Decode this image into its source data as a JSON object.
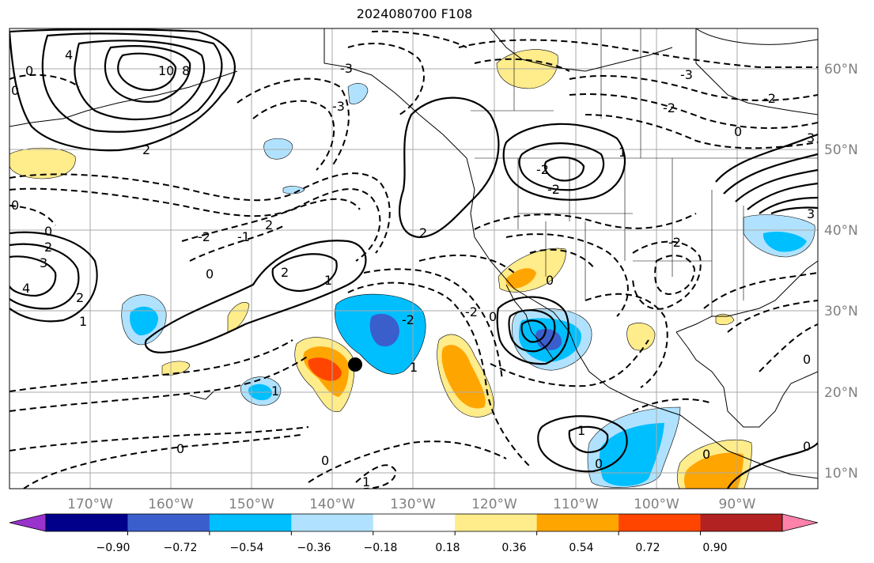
{
  "title": "2024080700 F108",
  "map": {
    "lon_labels": [
      "170°W",
      "160°W",
      "150°W",
      "140°W",
      "130°W",
      "120°W",
      "110°W",
      "100°W",
      "90°W"
    ],
    "lat_labels": [
      "60°N",
      "50°N",
      "40°N",
      "30°N",
      "20°N",
      "10°N"
    ],
    "contour_labels": [
      "2",
      "0",
      "-2",
      "-1",
      "1",
      "3",
      "4",
      "8",
      "10",
      "0",
      "-3",
      "-2",
      "-1",
      "2",
      "1",
      "0"
    ],
    "marker": "storm-position"
  },
  "colorbar": {
    "colors": [
      "#9a32cd",
      "#00008b",
      "#3a5fcd",
      "#00bfff",
      "#b0e2ff",
      "#ffffff",
      "#ffec8b",
      "#ffa500",
      "#ff4500",
      "#b22222",
      "#ff82ab"
    ],
    "tick_labels": [
      "−0.90",
      "−0.72",
      "−0.54",
      "−0.36",
      "−0.18",
      "0.18",
      "0.36",
      "0.54",
      "0.72",
      "0.90"
    ]
  }
}
